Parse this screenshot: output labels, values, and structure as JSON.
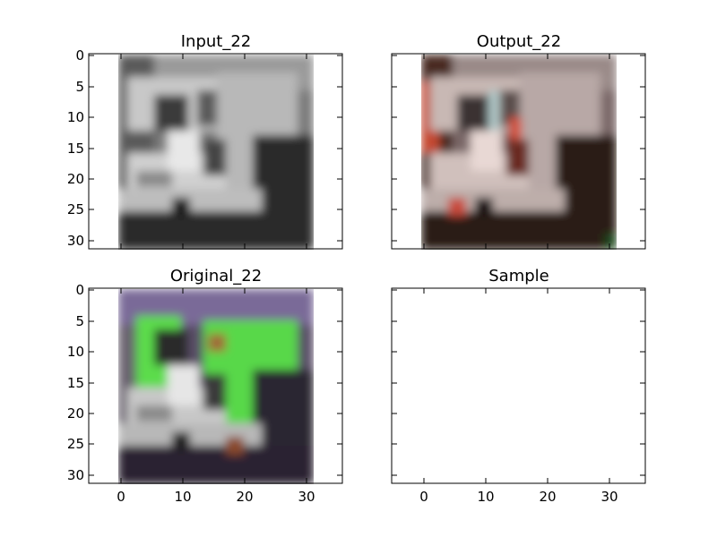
{
  "panels": [
    {
      "id": "input",
      "title": "Input_22",
      "y_ticks": [
        "0",
        "5",
        "10",
        "15",
        "20",
        "25",
        "30"
      ],
      "x_ticks": [],
      "image": "grayscale-truck"
    },
    {
      "id": "output",
      "title": "Output_22",
      "y_ticks": [],
      "x_ticks": [],
      "image": "colorized-truck-reddish"
    },
    {
      "id": "original",
      "title": "Original_22",
      "y_ticks": [
        "0",
        "5",
        "10",
        "15",
        "20",
        "25",
        "30"
      ],
      "x_ticks": [
        "0",
        "10",
        "20",
        "30"
      ],
      "image": "green-truck"
    },
    {
      "id": "sample",
      "title": "Sample",
      "y_ticks": [],
      "x_ticks": [
        "0",
        "10",
        "20",
        "30"
      ],
      "image": ""
    }
  ],
  "colors": {
    "gray_light": "#d8d8d8",
    "gray_dark": "#1a1a1a",
    "truck_green": "#5cdc4c",
    "output_red": "#c84a3a",
    "road_purple": "#3a3048",
    "sky_purple": "#7a6a98"
  }
}
